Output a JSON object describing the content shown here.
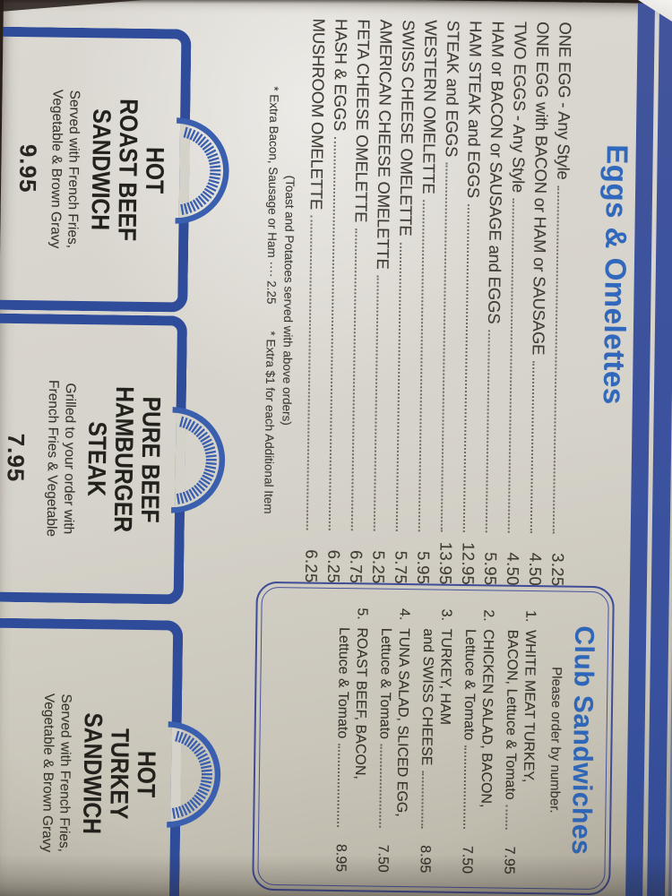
{
  "eggs_section": {
    "title": "Eggs & Omelettes",
    "items": [
      {
        "name": "ONE EGG - Any Style",
        "price": "3.25"
      },
      {
        "name": "ONE EGG with BACON or HAM or SAUSAGE",
        "price": "4.50"
      },
      {
        "name": "TWO EGGS - Any Style",
        "price": "4.50"
      },
      {
        "name": "HAM or BACON or SAUSAGE and EGGS",
        "price": "5.95"
      },
      {
        "name": "HAM STEAK and EGGS",
        "price": "12.95"
      },
      {
        "name": "STEAK and EGGS",
        "price": "13.95"
      },
      {
        "name": "WESTERN OMELETTE",
        "price": "5.95"
      },
      {
        "name": "SWISS CHEESE OMELETTE",
        "price": "5.75"
      },
      {
        "name": "AMERICAN CHEESE OMELETTE",
        "price": "5.25"
      },
      {
        "name": "FETA CHEESE OMELETTE",
        "price": "6.75"
      },
      {
        "name": "HASH & EGGS",
        "price": "6.25"
      },
      {
        "name": "MUSHROOM OMELETTE",
        "price": "6.25"
      }
    ],
    "note_line1": "(Toast and Potatoes served with above orders)",
    "note_line2a": "* Extra Bacon, Sausage or Ham ···· 2.25",
    "note_line2b": "* Extra $1 for each Additional Item"
  },
  "club_section": {
    "title": "Club Sandwiches",
    "subtitle": "Please order by number.",
    "items": [
      {
        "num": "1.",
        "line1": "WHITE MEAT TURKEY,",
        "line2": "BACON, Lettuce & Tomato",
        "price": "7.95"
      },
      {
        "num": "2.",
        "line1": "CHICKEN SALAD, BACON,",
        "line2": "Lettuce & Tomato",
        "price": "7.50"
      },
      {
        "num": "3.",
        "line1": "TURKEY, HAM",
        "line2": "and SWISS CHEESE",
        "price": "8.95"
      },
      {
        "num": "4.",
        "line1": "TUNA SALAD, SLICED EGG,",
        "line2": "Lettuce & Tomato",
        "price": "7.50"
      },
      {
        "num": "5.",
        "line1": "ROAST BEEF, BACON,",
        "line2": "Lettuce & Tomato",
        "price": "8.95"
      }
    ]
  },
  "specials": [
    {
      "title_lines": [
        "HOT",
        "ROAST BEEF",
        "SANDWICH"
      ],
      "desc_lines": [
        "Served with French Fries,",
        "Vegetable & Brown Gravy"
      ],
      "price": "9.95"
    },
    {
      "title_lines": [
        "PURE BEEF",
        "HAMBURGER",
        "STEAK"
      ],
      "desc_lines": [
        "Grilled to your order with",
        "French Fries & Vegetable"
      ],
      "price": "7.95"
    },
    {
      "title_lines": [
        "HOT",
        "TURKEY",
        "SANDWICH"
      ],
      "desc_lines": [
        "Served with French Fries,",
        "Vegetable & Brown Gravy"
      ],
      "price": ""
    }
  ],
  "colors": {
    "navy": "#2f4c9a",
    "stripe_blue": "#3a539e",
    "title_blue": "#2f68bd",
    "ink": "#3c3830",
    "paper": "#d6d3cb",
    "photo_background": "#29201a"
  }
}
